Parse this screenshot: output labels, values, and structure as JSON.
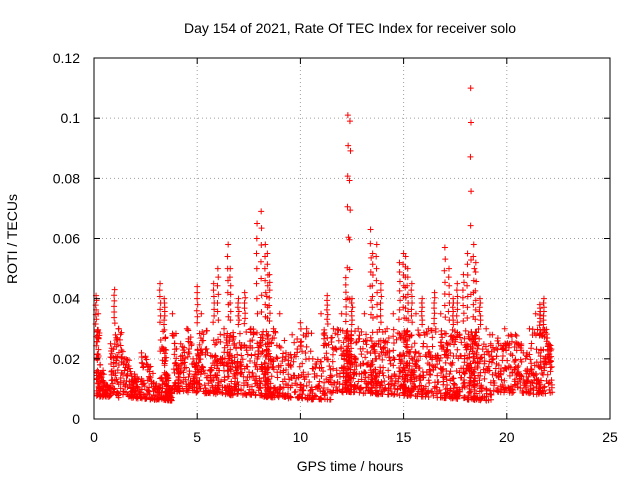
{
  "chart_data": {
    "type": "scatter",
    "title": "Day 154 of 2021, Rate Of TEC Index for receiver solo",
    "xlabel": "GPS time / hours",
    "ylabel": "ROTI / TECUs",
    "xlim": [
      0,
      25
    ],
    "ylim": [
      0,
      0.12
    ],
    "xticks": [
      0,
      5,
      10,
      15,
      20,
      25
    ],
    "xtick_labels": [
      "0",
      "5",
      "10",
      "15",
      "20",
      "25"
    ],
    "yticks": [
      0,
      0.02,
      0.04,
      0.06,
      0.08,
      0.1,
      0.12
    ],
    "ytick_labels": [
      "0",
      "0.02",
      "0.04",
      "0.06",
      "0.08",
      "0.1",
      "0.12"
    ],
    "grid": true,
    "marker": "+",
    "series": [
      {
        "name": "ROTI",
        "color": "#ff0000",
        "x": [
          0.1,
          0.2,
          0.3,
          0.5,
          0.8,
          1.0,
          1.2,
          1.5,
          1.8,
          2.0,
          2.3,
          2.6,
          2.9,
          3.2,
          3.4,
          3.5,
          3.6,
          3.8,
          4.0,
          4.2,
          4.5,
          4.8,
          5.0,
          5.2,
          5.5,
          5.8,
          6.0,
          6.3,
          6.5,
          6.6,
          6.8,
          7.0,
          7.3,
          7.6,
          7.9,
          8.1,
          8.3,
          8.4,
          8.5,
          8.7,
          9.0,
          9.3,
          9.6,
          10.0,
          10.3,
          10.6,
          11.0,
          11.3,
          11.6,
          12.0,
          12.2,
          12.3,
          12.4,
          12.5,
          12.8,
          13.1,
          13.4,
          13.5,
          13.7,
          13.9,
          14.2,
          14.5,
          14.8,
          15.0,
          15.1,
          15.2,
          15.4,
          15.6,
          15.9,
          16.2,
          16.5,
          16.8,
          17.0,
          17.2,
          17.4,
          17.6,
          17.9,
          18.1,
          18.25,
          18.4,
          18.5,
          18.7,
          19.0,
          19.3,
          19.6,
          19.9,
          20.2,
          20.5,
          20.8,
          21.1,
          21.4,
          21.6,
          21.8,
          22.0
        ],
        "y": [
          0.041,
          0.035,
          0.018,
          0.012,
          0.025,
          0.043,
          0.03,
          0.02,
          0.015,
          0.014,
          0.022,
          0.018,
          0.012,
          0.045,
          0.04,
          0.015,
          0.01,
          0.035,
          0.018,
          0.025,
          0.03,
          0.02,
          0.044,
          0.035,
          0.022,
          0.045,
          0.05,
          0.03,
          0.058,
          0.05,
          0.025,
          0.04,
          0.042,
          0.03,
          0.065,
          0.069,
          0.058,
          0.055,
          0.048,
          0.03,
          0.035,
          0.022,
          0.028,
          0.032,
          0.03,
          0.02,
          0.035,
          0.041,
          0.03,
          0.035,
          0.047,
          0.101,
          0.099,
          0.04,
          0.03,
          0.035,
          0.063,
          0.055,
          0.058,
          0.045,
          0.03,
          0.035,
          0.052,
          0.055,
          0.054,
          0.05,
          0.045,
          0.035,
          0.04,
          0.03,
          0.042,
          0.035,
          0.057,
          0.05,
          0.04,
          0.045,
          0.048,
          0.055,
          0.11,
          0.058,
          0.052,
          0.04,
          0.03,
          0.028,
          0.025,
          0.03,
          0.028,
          0.025,
          0.022,
          0.03,
          0.035,
          0.038,
          0.04,
          0.025
        ]
      }
    ]
  }
}
